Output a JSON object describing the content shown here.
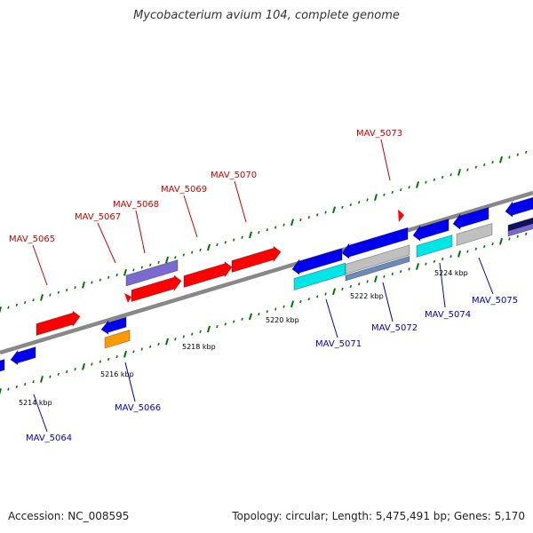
{
  "title": "Mycobacterium avium 104, complete genome",
  "footer": {
    "accession": "Accession: NC_008595",
    "summary": "Topology: circular; Length: 5,475,491 bp; Genes: 5,170"
  },
  "colors": {
    "forward_genes": "#ff0000",
    "reverse_genes": "#0000ee",
    "forward_labels": "#cc0000",
    "reverse_labels": "#0000cc",
    "ticks": "#007700",
    "backbone": "#888888",
    "purple_feature": "#7a6ad0",
    "cyan_feature": "#00e5e5",
    "gray_feature": "#c0c0c0",
    "steel_feature": "#6a8ab8",
    "orange_feature": "#ff9900",
    "navy_feature": "#101060"
  },
  "scale_labels": [
    "5214 kbp",
    "5216 kbp",
    "5218 kbp",
    "5220 kbp",
    "5222 kbp",
    "5224 kbp"
  ],
  "gene_labels": {
    "forward": [
      "MAV_5065",
      "MAV_5067",
      "MAV_5068",
      "MAV_5069",
      "MAV_5070",
      "MAV_5073"
    ],
    "reverse": [
      "MAV_5064",
      "MAV_5066",
      "MAV_5071",
      "MAV_5072",
      "MAV_5074",
      "MAV_5075"
    ]
  }
}
